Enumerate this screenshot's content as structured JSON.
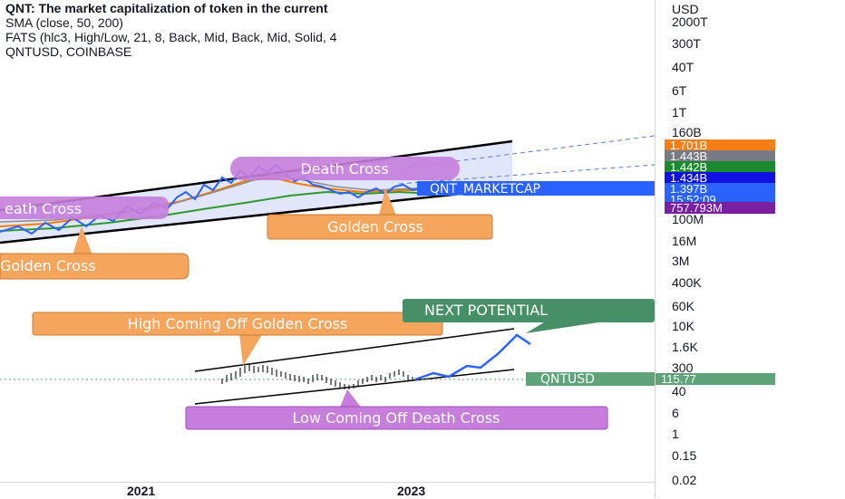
{
  "legend": {
    "title": "QNT: The market capitalization of token in the current",
    "line2": "SMA (close, 50, 200)",
    "line3": "FATS (hlc3, High/Low, 21, 8, Back, Mid, Back, Mid, Solid, 4",
    "line4": "QNTUSD, COINBASE"
  },
  "annotations": {
    "death_cross_top": "Death Cross",
    "death_cross_left": "eath Cross",
    "golden_cross_right": "Golden Cross",
    "golden_cross_left": "Golden Cross",
    "high_coming_off": "High Coming Off Golden Cross",
    "low_coming_off": "Low Coming Off Death Cross",
    "next_potential": "NEXT POTENTIAL",
    "marketcap_label": "QNT_MARKETCAP",
    "qntusd_label": "QNTUSD"
  },
  "price_axis": {
    "unit": "USD",
    "ticks": [
      "2000T",
      "300T",
      "40T",
      "6T",
      "1T",
      "160B",
      "100M",
      "16M",
      "3M",
      "400K",
      "60K",
      "10K",
      "1.6K",
      "300",
      "40",
      "6",
      "1",
      "0.15",
      "0.02"
    ]
  },
  "price_tags": [
    {
      "label": "1.701B",
      "color": "#f57f17"
    },
    {
      "label": "1.443B",
      "color": "#787b86"
    },
    {
      "label": "1.442B",
      "color": "#1b8a2e"
    },
    {
      "label": "1.434B",
      "color": "#1010e0"
    },
    {
      "label": "1.397B",
      "color": "#2962ff"
    },
    {
      "label": "15:52:09",
      "color": "#2962ff"
    },
    {
      "label": "757.793M",
      "color": "#7b1fa2"
    },
    {
      "label": "115.77",
      "color": "#5fa37a"
    }
  ],
  "time_axis": [
    "2021",
    "2023"
  ],
  "colors": {
    "channel_fill": "#dfe3fb",
    "price_line": "#2962ff",
    "sma50": "#f57c00",
    "sma200": "#2e9a2e",
    "death_bubble": "#c77ddb",
    "golden_bubble": "#f6a55c",
    "next_bubble": "#468f67"
  },
  "chart_data": {
    "type": "line",
    "series": [
      {
        "name": "QNT_MARKETCAP",
        "last": "1.397B"
      },
      {
        "name": "QNTUSD",
        "last": "115.77"
      }
    ],
    "scale": "log"
  }
}
